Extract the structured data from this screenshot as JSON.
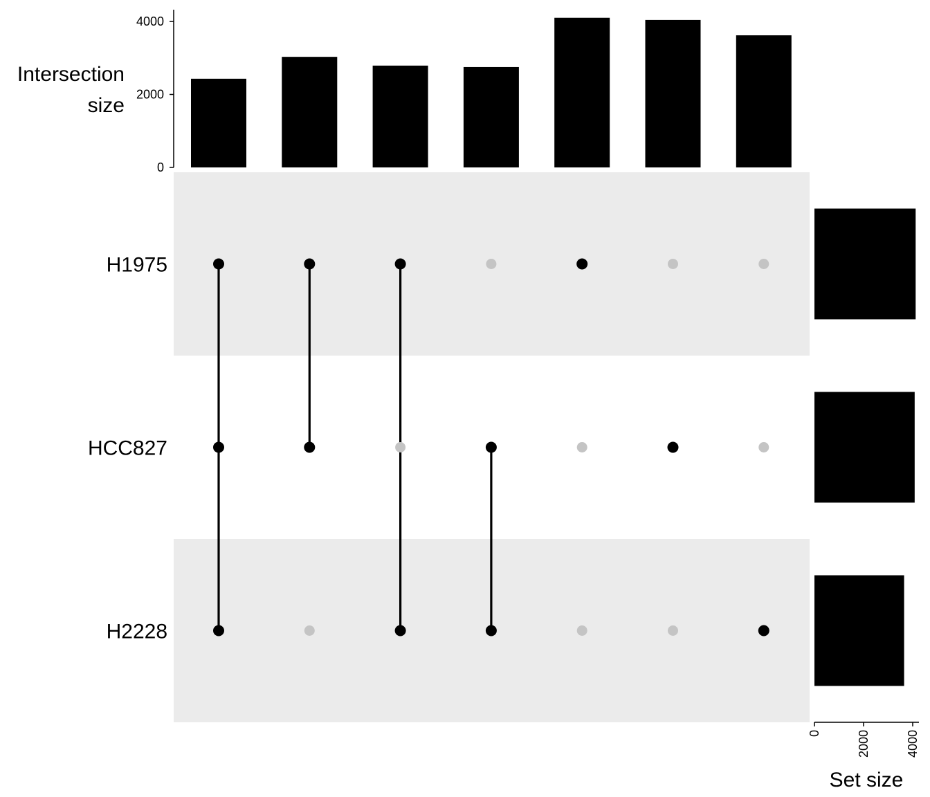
{
  "chart_data": {
    "type": "upset",
    "sets": [
      "H1975",
      "HCC827",
      "H2228"
    ],
    "set_sizes": [
      4120,
      4080,
      3650
    ],
    "intersections": [
      {
        "members": [
          1,
          1,
          1
        ],
        "size": 2430
      },
      {
        "members": [
          1,
          1,
          0
        ],
        "size": 3030
      },
      {
        "members": [
          1,
          0,
          1
        ],
        "size": 2790
      },
      {
        "members": [
          0,
          1,
          1
        ],
        "size": 2750
      },
      {
        "members": [
          1,
          0,
          0
        ],
        "size": 4100
      },
      {
        "members": [
          0,
          1,
          0
        ],
        "size": 4040
      },
      {
        "members": [
          0,
          0,
          1
        ],
        "size": 3620
      }
    ],
    "intersection_axis": {
      "title_lines": [
        "Intersection",
        "size"
      ],
      "ticks": [
        0,
        2000,
        4000
      ],
      "ylim": [
        0,
        4300
      ]
    },
    "set_size_axis": {
      "title": "Set size",
      "ticks": [
        0,
        2000,
        4000
      ],
      "xlim": [
        0,
        4200
      ]
    },
    "colors": {
      "bar": "#000000",
      "dot_active": "#000000",
      "dot_inactive": "#c4c4c4",
      "stripe": "#ebebeb",
      "axis": "#000000"
    }
  }
}
